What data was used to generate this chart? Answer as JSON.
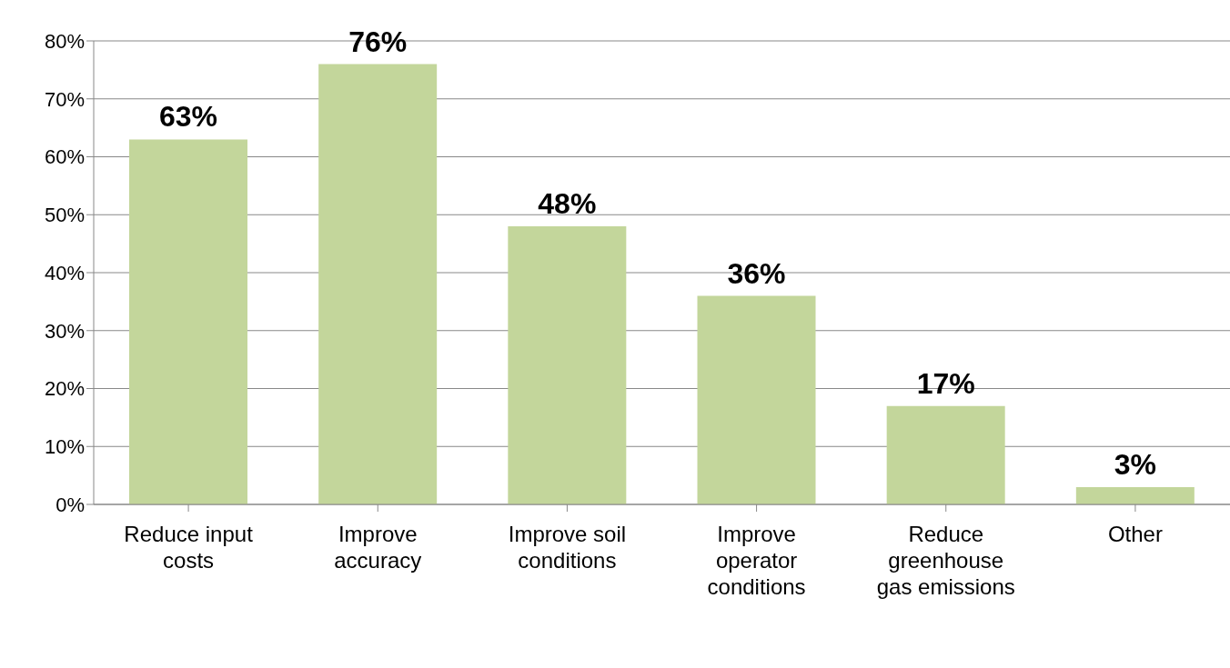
{
  "chart_data": {
    "type": "bar",
    "categories": [
      "Reduce input costs",
      "Improve accuracy",
      "Improve soil conditions",
      "Improve operator conditions",
      "Reduce greenhouse gas emissions",
      "Other"
    ],
    "values": [
      63,
      76,
      48,
      36,
      17,
      3
    ],
    "value_labels": [
      "63%",
      "76%",
      "48%",
      "36%",
      "17%",
      "3%"
    ],
    "color": "#c3d69b",
    "ylim": [
      0,
      80
    ],
    "yticks": [
      {
        "value": 0,
        "label": "0%"
      },
      {
        "value": 10,
        "label": "10%"
      },
      {
        "value": 20,
        "label": "20%"
      },
      {
        "value": 30,
        "label": "30%"
      },
      {
        "value": 40,
        "label": "40%"
      },
      {
        "value": 50,
        "label": "50%"
      },
      {
        "value": 60,
        "label": "60%"
      },
      {
        "value": 70,
        "label": "70%"
      },
      {
        "value": 80,
        "label": "80%"
      }
    ],
    "grid": "y"
  }
}
